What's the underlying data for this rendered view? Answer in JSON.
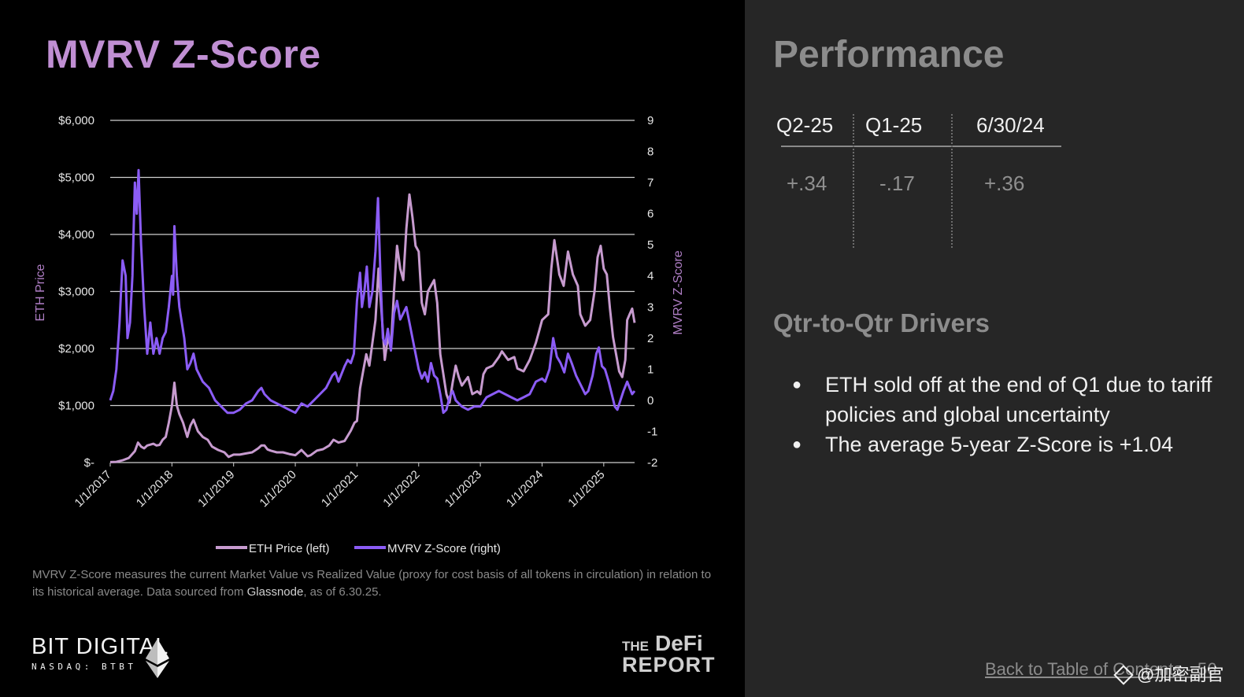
{
  "slide": {
    "title": "MVRV Z-Score",
    "footnote_prefix": "MVRV Z-Score  measures the current Market Value vs Realized Value (proxy for cost basis of all tokens in circulation) in relation to its historical average. Data sourced from ",
    "footnote_source": "Glassnode",
    "footnote_suffix": ", as of 6.30.25."
  },
  "branding": {
    "bit_digital": "BIT DIGITAL",
    "bit_digital_sub": "NASDAQ: BTBT",
    "defi_the": "THE",
    "defi_name": "DeFi",
    "defi_report": "REPORT"
  },
  "performance": {
    "title": "Performance",
    "headers": [
      "Q2-25",
      "Q1-25",
      "6/30/24"
    ],
    "values": [
      "+.34",
      "-.17",
      "+.36"
    ]
  },
  "drivers": {
    "title": "Qtr-to-Qtr Drivers",
    "bullets": [
      "ETH sold off at the end of Q1 due to tariff policies and global uncertainty",
      "The average 5-year Z-Score is +1.04"
    ]
  },
  "footer": {
    "toc_link": "Back to Table of Contents - 56",
    "watermark": "@加密副官"
  },
  "colors": {
    "eth_price": "#c79bcf",
    "z_score": "#8b5cf6",
    "title": "#c08fd3",
    "gridline": "#d0d0d0",
    "right_bg": "#262626"
  },
  "chart_data": {
    "type": "line",
    "left_axis": {
      "label": "ETH Price",
      "range": [
        0,
        6000
      ],
      "ticks": [
        "$-",
        "$1,000",
        "$2,000",
        "$3,000",
        "$4,000",
        "$5,000",
        "$6,000"
      ]
    },
    "right_axis": {
      "label": "MVRV Z-Score",
      "range": [
        -2,
        9
      ],
      "ticks": [
        "-2",
        "-1",
        "0",
        "1",
        "2",
        "3",
        "4",
        "5",
        "6",
        "7",
        "8",
        "9"
      ]
    },
    "x_axis": {
      "range": [
        2017.0,
        2025.5
      ],
      "ticks": [
        "1/1/2017",
        "1/1/2018",
        "1/1/2019",
        "1/1/2020",
        "1/1/2021",
        "1/1/2022",
        "1/1/2023",
        "1/1/2024",
        "1/1/2025"
      ]
    },
    "legend": [
      "ETH Price (left)",
      "MVRV Z-Score (right)"
    ],
    "grid": true,
    "series": [
      {
        "name": "ETH Price (left)",
        "axis": "left",
        "points": [
          [
            2017.0,
            8
          ],
          [
            2017.1,
            12
          ],
          [
            2017.2,
            40
          ],
          [
            2017.3,
            80
          ],
          [
            2017.4,
            200
          ],
          [
            2017.45,
            350
          ],
          [
            2017.5,
            280
          ],
          [
            2017.55,
            250
          ],
          [
            2017.6,
            300
          ],
          [
            2017.7,
            330
          ],
          [
            2017.75,
            300
          ],
          [
            2017.8,
            310
          ],
          [
            2017.85,
            400
          ],
          [
            2017.9,
            450
          ],
          [
            2017.95,
            700
          ],
          [
            2018.0,
            1000
          ],
          [
            2018.04,
            1400
          ],
          [
            2018.08,
            1000
          ],
          [
            2018.12,
            850
          ],
          [
            2018.18,
            700
          ],
          [
            2018.25,
            450
          ],
          [
            2018.3,
            650
          ],
          [
            2018.35,
            750
          ],
          [
            2018.42,
            550
          ],
          [
            2018.5,
            450
          ],
          [
            2018.58,
            400
          ],
          [
            2018.65,
            280
          ],
          [
            2018.75,
            220
          ],
          [
            2018.85,
            180
          ],
          [
            2018.92,
            100
          ],
          [
            2019.0,
            140
          ],
          [
            2019.1,
            140
          ],
          [
            2019.2,
            160
          ],
          [
            2019.3,
            180
          ],
          [
            2019.4,
            250
          ],
          [
            2019.45,
            300
          ],
          [
            2019.5,
            300
          ],
          [
            2019.55,
            230
          ],
          [
            2019.6,
            210
          ],
          [
            2019.7,
            180
          ],
          [
            2019.8,
            180
          ],
          [
            2019.9,
            150
          ],
          [
            2020.0,
            130
          ],
          [
            2020.1,
            220
          ],
          [
            2020.2,
            110
          ],
          [
            2020.25,
            130
          ],
          [
            2020.35,
            210
          ],
          [
            2020.45,
            235
          ],
          [
            2020.55,
            300
          ],
          [
            2020.62,
            400
          ],
          [
            2020.7,
            350
          ],
          [
            2020.8,
            380
          ],
          [
            2020.9,
            560
          ],
          [
            2020.96,
            700
          ],
          [
            2021.0,
            730
          ],
          [
            2021.05,
            1300
          ],
          [
            2021.1,
            1600
          ],
          [
            2021.15,
            1900
          ],
          [
            2021.2,
            1700
          ],
          [
            2021.3,
            2500
          ],
          [
            2021.35,
            3400
          ],
          [
            2021.4,
            2600
          ],
          [
            2021.45,
            1800
          ],
          [
            2021.5,
            2200
          ],
          [
            2021.55,
            2000
          ],
          [
            2021.6,
            3000
          ],
          [
            2021.65,
            3800
          ],
          [
            2021.7,
            3400
          ],
          [
            2021.75,
            3200
          ],
          [
            2021.8,
            4100
          ],
          [
            2021.85,
            4700
          ],
          [
            2021.9,
            4300
          ],
          [
            2021.95,
            3800
          ],
          [
            2022.0,
            3700
          ],
          [
            2022.05,
            2800
          ],
          [
            2022.1,
            2600
          ],
          [
            2022.15,
            3000
          ],
          [
            2022.25,
            3200
          ],
          [
            2022.3,
            2800
          ],
          [
            2022.35,
            1900
          ],
          [
            2022.45,
            1200
          ],
          [
            2022.5,
            1050
          ],
          [
            2022.55,
            1400
          ],
          [
            2022.6,
            1700
          ],
          [
            2022.65,
            1500
          ],
          [
            2022.7,
            1350
          ],
          [
            2022.8,
            1500
          ],
          [
            2022.87,
            1200
          ],
          [
            2022.95,
            1250
          ],
          [
            2023.0,
            1200
          ],
          [
            2023.05,
            1550
          ],
          [
            2023.1,
            1650
          ],
          [
            2023.2,
            1700
          ],
          [
            2023.3,
            1850
          ],
          [
            2023.35,
            1950
          ],
          [
            2023.45,
            1800
          ],
          [
            2023.55,
            1850
          ],
          [
            2023.6,
            1650
          ],
          [
            2023.7,
            1600
          ],
          [
            2023.8,
            1800
          ],
          [
            2023.9,
            2100
          ],
          [
            2023.95,
            2300
          ],
          [
            2024.0,
            2500
          ],
          [
            2024.1,
            2600
          ],
          [
            2024.15,
            3400
          ],
          [
            2024.2,
            3900
          ],
          [
            2024.28,
            3300
          ],
          [
            2024.35,
            3100
          ],
          [
            2024.42,
            3700
          ],
          [
            2024.5,
            3300
          ],
          [
            2024.58,
            3100
          ],
          [
            2024.62,
            2600
          ],
          [
            2024.7,
            2400
          ],
          [
            2024.78,
            2500
          ],
          [
            2024.85,
            3000
          ],
          [
            2024.9,
            3600
          ],
          [
            2024.95,
            3800
          ],
          [
            2025.0,
            3400
          ],
          [
            2025.05,
            3300
          ],
          [
            2025.1,
            2700
          ],
          [
            2025.15,
            2200
          ],
          [
            2025.2,
            1900
          ],
          [
            2025.25,
            1600
          ],
          [
            2025.3,
            1500
          ],
          [
            2025.35,
            1800
          ],
          [
            2025.38,
            2500
          ],
          [
            2025.42,
            2600
          ],
          [
            2025.46,
            2700
          ],
          [
            2025.5,
            2450
          ]
        ]
      },
      {
        "name": "MVRV Z-Score (right)",
        "axis": "right",
        "points": [
          [
            2017.0,
            0.0
          ],
          [
            2017.05,
            0.3
          ],
          [
            2017.1,
            1.0
          ],
          [
            2017.15,
            2.5
          ],
          [
            2017.2,
            4.5
          ],
          [
            2017.25,
            4.0
          ],
          [
            2017.28,
            2.0
          ],
          [
            2017.32,
            2.5
          ],
          [
            2017.36,
            4.0
          ],
          [
            2017.4,
            7.0
          ],
          [
            2017.43,
            6.0
          ],
          [
            2017.46,
            7.4
          ],
          [
            2017.5,
            5.0
          ],
          [
            2017.55,
            3.0
          ],
          [
            2017.6,
            1.5
          ],
          [
            2017.65,
            2.5
          ],
          [
            2017.7,
            1.5
          ],
          [
            2017.75,
            2.0
          ],
          [
            2017.8,
            1.5
          ],
          [
            2017.85,
            2.0
          ],
          [
            2017.9,
            2.2
          ],
          [
            2017.95,
            3.0
          ],
          [
            2018.0,
            4.0
          ],
          [
            2018.02,
            3.4
          ],
          [
            2018.04,
            5.6
          ],
          [
            2018.08,
            4.0
          ],
          [
            2018.12,
            3.0
          ],
          [
            2018.16,
            2.5
          ],
          [
            2018.2,
            2.0
          ],
          [
            2018.25,
            1.0
          ],
          [
            2018.3,
            1.2
          ],
          [
            2018.35,
            1.5
          ],
          [
            2018.4,
            1.0
          ],
          [
            2018.5,
            0.6
          ],
          [
            2018.6,
            0.4
          ],
          [
            2018.7,
            0.0
          ],
          [
            2018.8,
            -0.2
          ],
          [
            2018.9,
            -0.4
          ],
          [
            2019.0,
            -0.4
          ],
          [
            2019.1,
            -0.3
          ],
          [
            2019.2,
            -0.1
          ],
          [
            2019.3,
            0.0
          ],
          [
            2019.4,
            0.3
          ],
          [
            2019.45,
            0.4
          ],
          [
            2019.5,
            0.2
          ],
          [
            2019.6,
            0.0
          ],
          [
            2019.7,
            -0.1
          ],
          [
            2019.8,
            -0.2
          ],
          [
            2019.9,
            -0.3
          ],
          [
            2020.0,
            -0.4
          ],
          [
            2020.1,
            -0.1
          ],
          [
            2020.2,
            -0.2
          ],
          [
            2020.3,
            0.0
          ],
          [
            2020.4,
            0.2
          ],
          [
            2020.5,
            0.4
          ],
          [
            2020.6,
            0.8
          ],
          [
            2020.65,
            0.9
          ],
          [
            2020.7,
            0.6
          ],
          [
            2020.8,
            1.1
          ],
          [
            2020.85,
            1.3
          ],
          [
            2020.9,
            1.2
          ],
          [
            2020.95,
            1.5
          ],
          [
            2021.0,
            3.2
          ],
          [
            2021.05,
            4.1
          ],
          [
            2021.08,
            3.0
          ],
          [
            2021.12,
            3.5
          ],
          [
            2021.16,
            4.3
          ],
          [
            2021.2,
            3.0
          ],
          [
            2021.25,
            3.5
          ],
          [
            2021.3,
            4.8
          ],
          [
            2021.34,
            6.5
          ],
          [
            2021.38,
            4.0
          ],
          [
            2021.42,
            2.0
          ],
          [
            2021.46,
            1.8
          ],
          [
            2021.5,
            2.3
          ],
          [
            2021.55,
            1.6
          ],
          [
            2021.6,
            2.8
          ],
          [
            2021.65,
            3.2
          ],
          [
            2021.7,
            2.6
          ],
          [
            2021.75,
            2.8
          ],
          [
            2021.8,
            3.0
          ],
          [
            2021.85,
            2.5
          ],
          [
            2021.9,
            2.0
          ],
          [
            2021.95,
            1.5
          ],
          [
            2022.0,
            1.0
          ],
          [
            2022.05,
            0.7
          ],
          [
            2022.1,
            0.9
          ],
          [
            2022.15,
            0.6
          ],
          [
            2022.2,
            1.2
          ],
          [
            2022.25,
            0.8
          ],
          [
            2022.3,
            0.7
          ],
          [
            2022.35,
            0.2
          ],
          [
            2022.4,
            -0.4
          ],
          [
            2022.45,
            -0.3
          ],
          [
            2022.5,
            0.1
          ],
          [
            2022.55,
            0.3
          ],
          [
            2022.6,
            0.0
          ],
          [
            2022.7,
            -0.2
          ],
          [
            2022.8,
            -0.3
          ],
          [
            2022.9,
            -0.2
          ],
          [
            2023.0,
            -0.2
          ],
          [
            2023.1,
            0.1
          ],
          [
            2023.2,
            0.2
          ],
          [
            2023.3,
            0.3
          ],
          [
            2023.4,
            0.2
          ],
          [
            2023.5,
            0.1
          ],
          [
            2023.6,
            0.0
          ],
          [
            2023.7,
            0.1
          ],
          [
            2023.8,
            0.2
          ],
          [
            2023.9,
            0.6
          ],
          [
            2024.0,
            0.7
          ],
          [
            2024.05,
            0.6
          ],
          [
            2024.12,
            1.0
          ],
          [
            2024.18,
            2.0
          ],
          [
            2024.24,
            1.4
          ],
          [
            2024.3,
            1.2
          ],
          [
            2024.36,
            0.9
          ],
          [
            2024.42,
            1.5
          ],
          [
            2024.48,
            1.2
          ],
          [
            2024.55,
            0.8
          ],
          [
            2024.6,
            0.6
          ],
          [
            2024.65,
            0.4
          ],
          [
            2024.7,
            0.2
          ],
          [
            2024.75,
            0.3
          ],
          [
            2024.82,
            0.8
          ],
          [
            2024.88,
            1.5
          ],
          [
            2024.92,
            1.7
          ],
          [
            2024.97,
            1.1
          ],
          [
            2025.02,
            1.0
          ],
          [
            2025.08,
            0.6
          ],
          [
            2025.13,
            0.2
          ],
          [
            2025.18,
            -0.2
          ],
          [
            2025.22,
            -0.3
          ],
          [
            2025.27,
            0.0
          ],
          [
            2025.32,
            0.3
          ],
          [
            2025.38,
            0.6
          ],
          [
            2025.42,
            0.4
          ],
          [
            2025.46,
            0.2
          ],
          [
            2025.5,
            0.3
          ]
        ]
      }
    ]
  }
}
